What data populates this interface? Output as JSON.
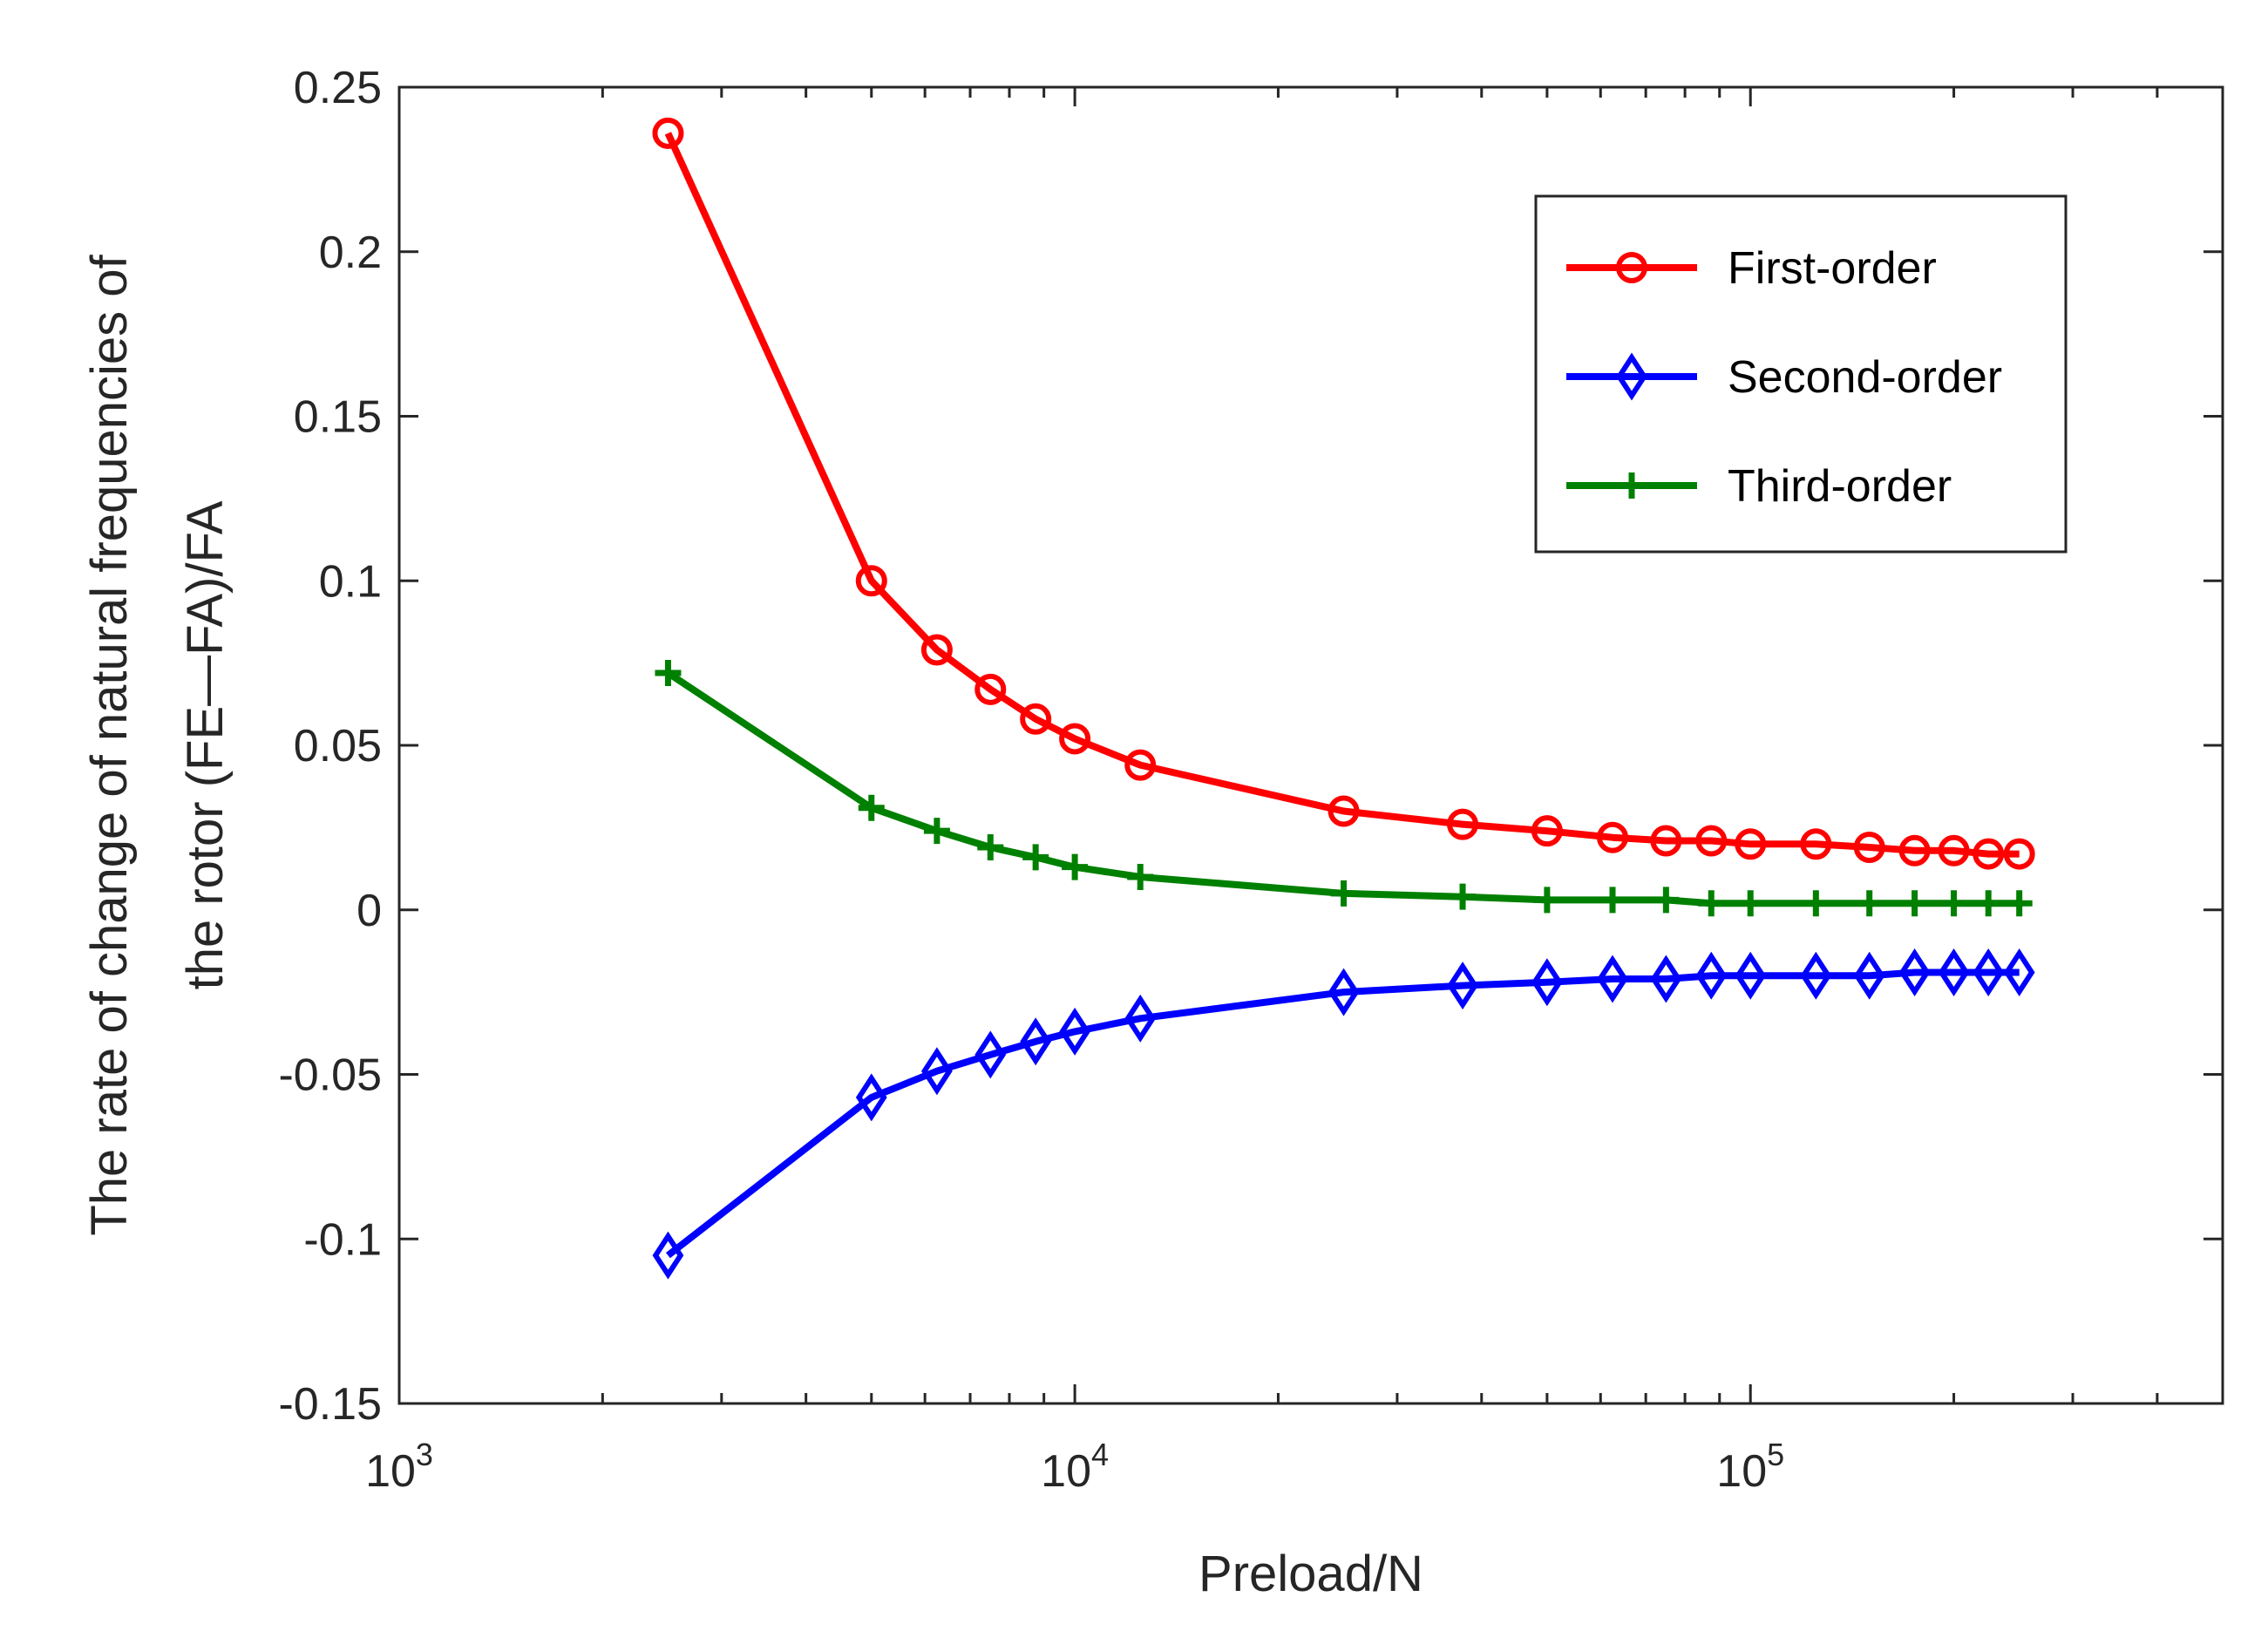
{
  "chart_data": {
    "type": "line",
    "xscale": "log",
    "xlabel": "Preload/N",
    "ylabel_lines": [
      "The rate of change of natural frequencies of",
      "the rotor (FE—FA)/FA"
    ],
    "xlim": [
      1000,
      500000
    ],
    "ylim": [
      -0.15,
      0.25
    ],
    "yticks": [
      -0.15,
      -0.1,
      -0.05,
      0,
      0.05,
      0.1,
      0.15,
      0.2,
      0.25
    ],
    "ytick_labels": [
      "-0.15",
      "-0.1",
      "-0.05",
      "0",
      "0.05",
      "0.1",
      "0.15",
      "0.2",
      "0.25"
    ],
    "xtick_labels": [
      {
        "value": 1000,
        "base": "10",
        "exp": "3"
      },
      {
        "value": 10000,
        "base": "10",
        "exp": "4"
      },
      {
        "value": 100000,
        "base": "10",
        "exp": "5"
      }
    ],
    "grid": false,
    "legend_position": "top-right",
    "x": [
      2500,
      5000,
      6250,
      7500,
      8750,
      10000,
      12500,
      25000,
      37500,
      50000,
      62500,
      75000,
      87500,
      100000,
      125000,
      150000,
      175000,
      200000,
      225000,
      250000
    ],
    "series": [
      {
        "name": "First-order",
        "color": "#ff0000",
        "marker": "circle",
        "values": [
          0.236,
          0.1,
          0.079,
          0.067,
          0.058,
          0.052,
          0.044,
          0.03,
          0.026,
          0.024,
          0.022,
          0.021,
          0.021,
          0.02,
          0.02,
          0.019,
          0.018,
          0.018,
          0.017,
          0.017
        ]
      },
      {
        "name": "Second-order",
        "color": "#0000ff",
        "marker": "diamond",
        "values": [
          -0.105,
          -0.057,
          -0.049,
          -0.044,
          -0.04,
          -0.037,
          -0.033,
          -0.025,
          -0.023,
          -0.022,
          -0.021,
          -0.021,
          -0.02,
          -0.02,
          -0.02,
          -0.02,
          -0.019,
          -0.019,
          -0.019,
          -0.019
        ]
      },
      {
        "name": "Third-order",
        "color": "#008000",
        "marker": "plus",
        "values": [
          0.072,
          0.031,
          0.024,
          0.019,
          0.016,
          0.013,
          0.01,
          0.005,
          0.004,
          0.003,
          0.003,
          0.003,
          0.002,
          0.002,
          0.002,
          0.002,
          0.002,
          0.002,
          0.002,
          0.002
        ]
      }
    ]
  }
}
